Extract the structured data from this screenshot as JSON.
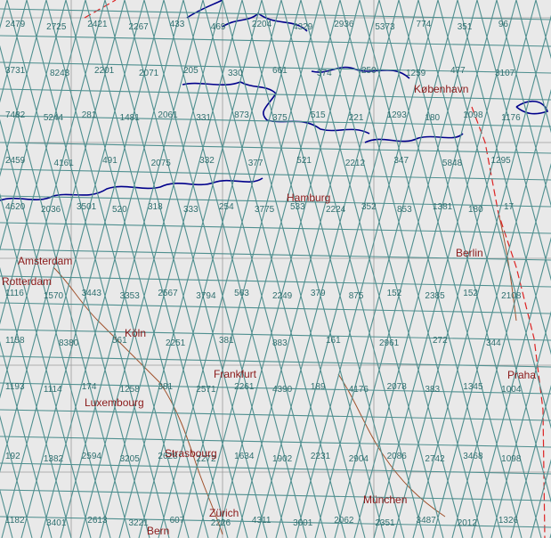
{
  "map": {
    "cities": [
      "København",
      "Hamburg",
      "Amsterdam",
      "Rotterdam",
      "Köln",
      "Frankfurt",
      "Luxembourg",
      "Strasbourg",
      "Zürich",
      "Bern",
      "Praha",
      "Berlin",
      "München"
    ],
    "orbit_rows": [
      [
        "2479",
        "2725",
        "2421",
        "2267",
        "433",
        "469",
        "2204",
        "4329",
        "2936",
        "5373",
        "774",
        "351",
        "96"
      ],
      [
        "3731",
        "8243",
        "2201",
        "2071",
        "205",
        "330",
        "661",
        "374",
        "250",
        "1259",
        "477",
        "3107"
      ],
      [
        "7482",
        "5244",
        "281",
        "1481",
        "2061",
        "331",
        "873",
        "375",
        "515",
        "221",
        "1293",
        "180",
        "1098",
        "1176"
      ],
      [
        "2459",
        "4161",
        "491",
        "2075",
        "332",
        "377",
        "521",
        "2212",
        "347",
        "5848",
        "1295"
      ],
      [
        "4620",
        "2036",
        "3501",
        "520",
        "318",
        "333",
        "254",
        "3775",
        "533",
        "2224",
        "352",
        "853",
        "1381",
        "180",
        "17"
      ],
      [
        "1116",
        "1570",
        "3443",
        "3353",
        "2567",
        "3794",
        "563",
        "2249",
        "379",
        "875",
        "152",
        "2385",
        "152",
        "2108"
      ],
      [
        "1158",
        "8380",
        "561",
        "2251",
        "381",
        "883",
        "161",
        "2961",
        "272",
        "344"
      ],
      [
        "1193",
        "1114",
        "174",
        "1258",
        "381",
        "2571",
        "2261",
        "4390",
        "189",
        "4176",
        "2078",
        "383",
        "1345",
        "1004"
      ],
      [
        "192",
        "1382",
        "2594",
        "3205",
        "2628",
        "2272",
        "1634",
        "1902",
        "2231",
        "2904",
        "2086",
        "2742",
        "3468",
        "1098"
      ],
      [
        "1182",
        "3401",
        "2613",
        "3221",
        "607",
        "2226",
        "4311",
        "3001",
        "2062",
        "2351",
        "3487",
        "2012",
        "1326"
      ]
    ]
  }
}
